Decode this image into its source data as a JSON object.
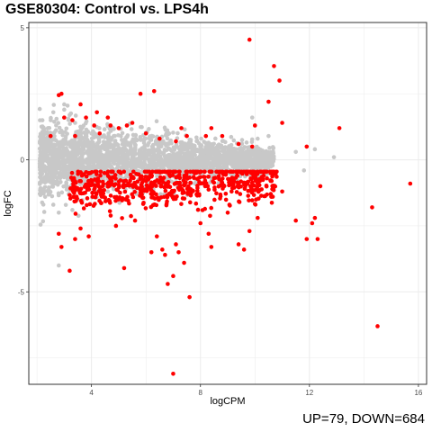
{
  "chart_data": {
    "type": "scatter",
    "title": "GSE80304: Control vs. LPS4h",
    "xlabel": "logCPM",
    "ylabel": "logFC",
    "caption": "UP=79, DOWN=684",
    "xlim": [
      1.7,
      16.3
    ],
    "ylim": [
      -8.5,
      5.2
    ],
    "x_ticks": [
      4,
      8,
      12,
      16
    ],
    "y_ticks": [
      5,
      0,
      -5
    ],
    "grid": true,
    "colors": {
      "not_significant": "#c8c8c8",
      "significant": "#ff0000",
      "panel_border": "#333333",
      "grid": "#ebebeb"
    },
    "counts": {
      "up": 79,
      "down": 684
    },
    "series": [
      {
        "status": "not significant",
        "color": "#c8c8c8",
        "note": "dense background cloud of non-significant genes, approx logCPM 2-13, logFC -2 to 2",
        "points": [
          [
            2.2,
            1.5
          ],
          [
            2.6,
            1.8
          ],
          [
            2.4,
            1.2
          ],
          [
            2.3,
            -1.4
          ],
          [
            2.6,
            -1.7
          ],
          [
            2.8,
            -2.0
          ],
          [
            3.3,
            -1.9
          ],
          [
            3.0,
            1.9
          ],
          [
            3.2,
            1.7
          ],
          [
            3.5,
            -1.5
          ],
          [
            3.4,
            1.4
          ],
          [
            2.8,
            -4.0
          ],
          [
            9.9,
            1.6
          ],
          [
            10.1,
            0.8
          ],
          [
            10.5,
            0.9
          ],
          [
            11.5,
            0.3
          ],
          [
            11.8,
            -0.4
          ],
          [
            12.2,
            0.4
          ],
          [
            12.9,
            0.1
          ],
          [
            3.0,
            2.1
          ]
        ]
      },
      {
        "status": "significant",
        "color": "#ff0000",
        "note": "visible significant genes (UP=79, DOWN=684); down-regulated band shown only partially",
        "points": [
          [
            9.8,
            4.55
          ],
          [
            10.7,
            3.55
          ],
          [
            10.9,
            3.0
          ],
          [
            10.5,
            2.2
          ],
          [
            11.0,
            1.4
          ],
          [
            13.1,
            1.2
          ],
          [
            6.3,
            2.6
          ],
          [
            5.8,
            2.5
          ],
          [
            2.9,
            2.5
          ],
          [
            2.8,
            2.45
          ],
          [
            3.6,
            2.1
          ],
          [
            4.2,
            1.8
          ],
          [
            4.6,
            1.6
          ],
          [
            4.7,
            1.3
          ],
          [
            5.0,
            1.2
          ],
          [
            5.3,
            1.3
          ],
          [
            5.5,
            1.4
          ],
          [
            6.0,
            1.0
          ],
          [
            6.5,
            0.8
          ],
          [
            7.1,
            0.7
          ],
          [
            7.3,
            1.2
          ],
          [
            7.5,
            0.9
          ],
          [
            8.2,
            0.9
          ],
          [
            8.4,
            1.2
          ],
          [
            8.8,
            0.9
          ],
          [
            9.4,
            0.6
          ],
          [
            9.9,
            0.5
          ],
          [
            10.0,
            1.3
          ],
          [
            3.0,
            1.6
          ],
          [
            3.4,
            0.9
          ],
          [
            2.5,
            0.9
          ],
          [
            3.3,
            1.5
          ],
          [
            3.8,
            1.6
          ],
          [
            4.1,
            1.3
          ],
          [
            4.3,
            1.0
          ],
          [
            11.9,
            0.5
          ],
          [
            2.8,
            -2.8
          ],
          [
            2.9,
            -3.3
          ],
          [
            3.6,
            -2.6
          ],
          [
            3.4,
            -3.0
          ],
          [
            3.9,
            -2.9
          ],
          [
            3.2,
            -4.2
          ],
          [
            5.2,
            -4.1
          ],
          [
            6.2,
            -3.5
          ],
          [
            6.6,
            -3.4
          ],
          [
            6.7,
            -3.6
          ],
          [
            7.2,
            -3.5
          ],
          [
            7.4,
            -3.9
          ],
          [
            7.1,
            -3.2
          ],
          [
            7.0,
            -4.4
          ],
          [
            6.8,
            -4.7
          ],
          [
            7.6,
            -5.2
          ],
          [
            7.0,
            -8.1
          ],
          [
            8.3,
            -2.8
          ],
          [
            8.4,
            -3.3
          ],
          [
            9.4,
            -3.2
          ],
          [
            9.6,
            -3.4
          ],
          [
            9.8,
            -2.7
          ],
          [
            11.5,
            -2.3
          ],
          [
            11.9,
            -3.0
          ],
          [
            12.1,
            -2.4
          ],
          [
            12.2,
            -2.2
          ],
          [
            12.3,
            -3.0
          ],
          [
            12.4,
            -1.0
          ],
          [
            14.3,
            -1.8
          ],
          [
            15.7,
            -0.9
          ],
          [
            14.5,
            -6.3
          ],
          [
            6.4,
            -2.9
          ],
          [
            8.0,
            -2.4
          ],
          [
            10.1,
            -2.2
          ],
          [
            5.6,
            -2.3
          ],
          [
            4.9,
            -2.5
          ],
          [
            9.0,
            -2.0
          ],
          [
            10.6,
            -1.4
          ],
          [
            11.0,
            -1.2
          ]
        ]
      }
    ]
  }
}
